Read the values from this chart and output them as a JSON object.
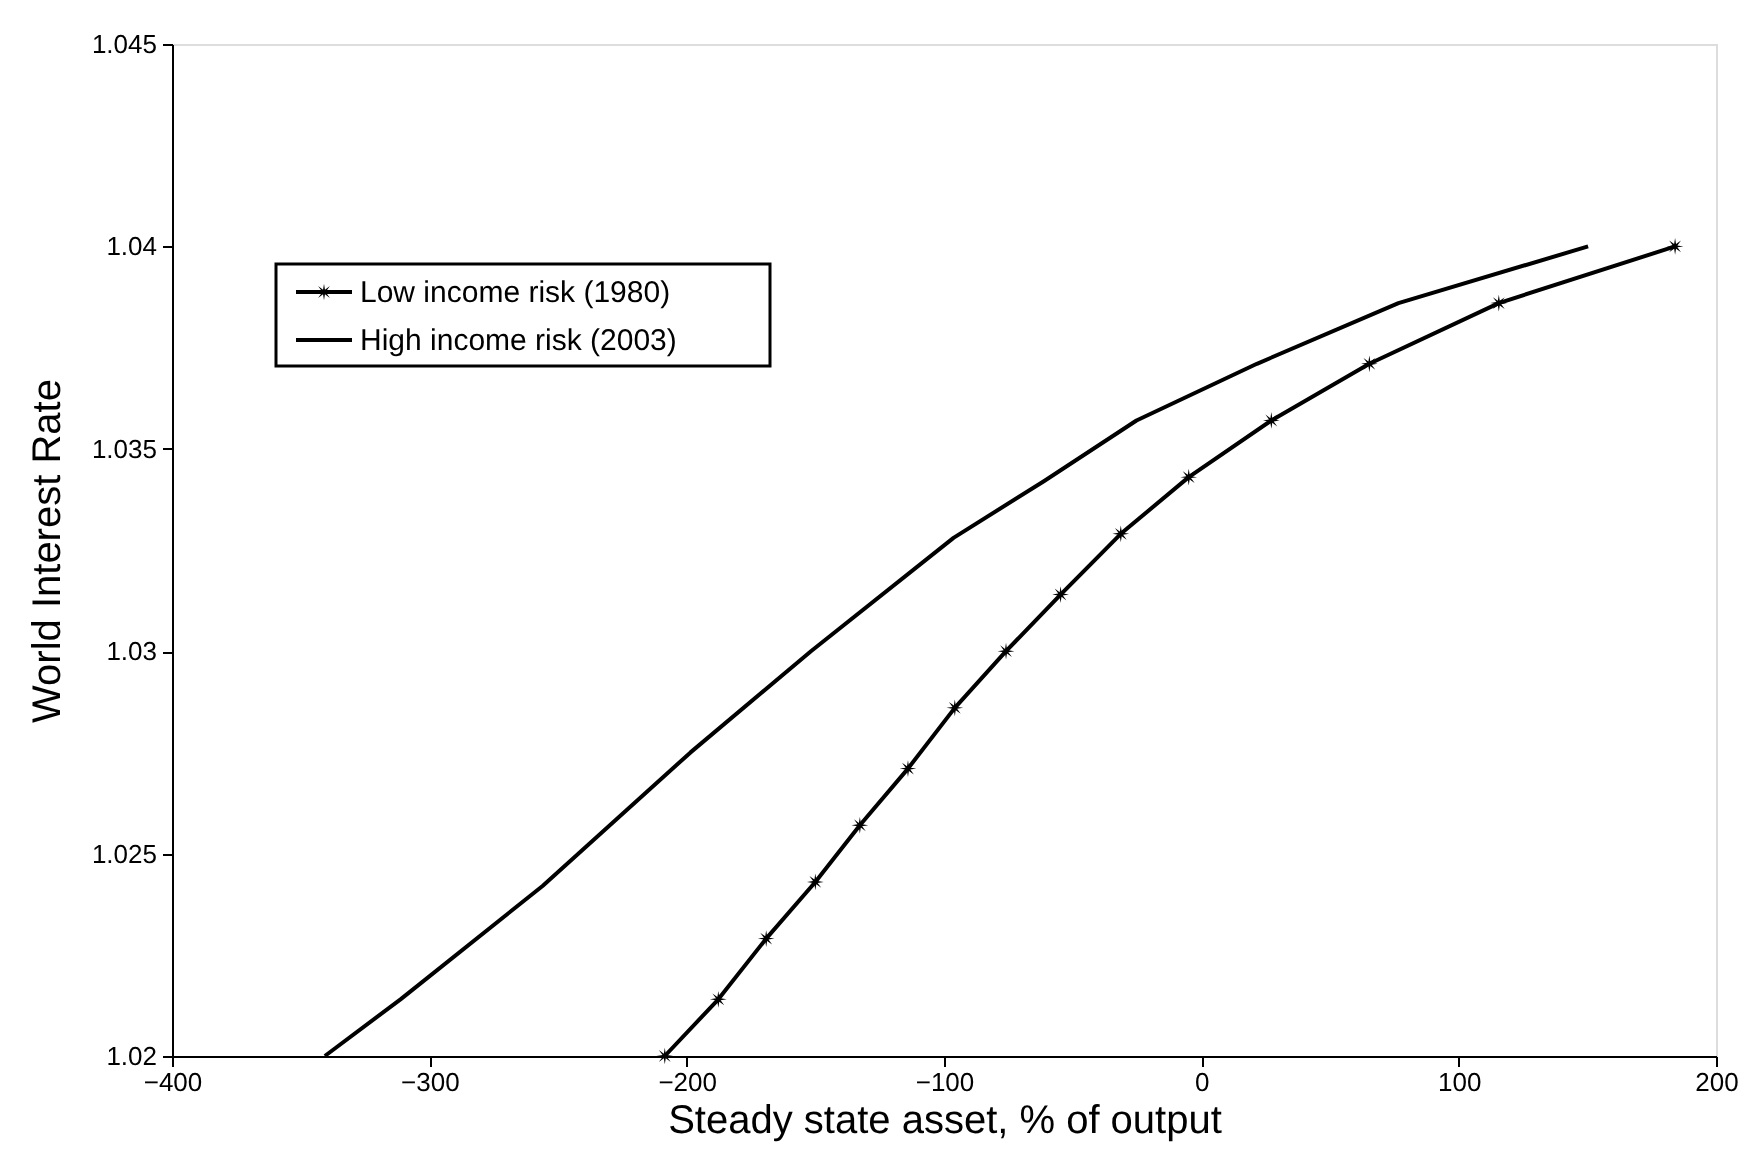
{
  "chart_data": {
    "type": "line",
    "xlabel": "Steady state asset, % of output",
    "ylabel": "World Interest Rate",
    "xlim": [
      -400,
      200
    ],
    "xticks": [
      -400,
      -300,
      -200,
      -100,
      0,
      100,
      200
    ],
    "ylim": [
      1.02,
      1.045
    ],
    "yticks": [
      1.02,
      1.025,
      1.03,
      1.035,
      1.04,
      1.045
    ],
    "grid": false,
    "legend": "top left",
    "line_style": "solid",
    "series": [
      {
        "name": "Low income risk (1980)",
        "color": "#000000",
        "marker": "star",
        "x": [
          -208.5,
          -187.7,
          -169.1,
          -150,
          -132.7,
          -114,
          -95.8,
          -75.9,
          -54.7,
          -31.3,
          -4.9,
          27.2,
          65.3,
          115.6,
          184.1
        ],
        "values": [
          1.02,
          1.0214,
          1.0229,
          1.0243,
          1.0257,
          1.0271,
          1.0286,
          1.03,
          1.0314,
          1.0329,
          1.0343,
          1.0357,
          1.0371,
          1.0386,
          1.04
        ]
      },
      {
        "name": "High income risk (2003)",
        "color": "#000000",
        "marker": "none",
        "x": [
          -340.6,
          -311.2,
          -256,
          -198.5,
          -151.7,
          -96.3,
          -61.2,
          -25.2,
          21.6,
          76.6,
          150.3
        ],
        "values": [
          1.02,
          1.0214,
          1.0242,
          1.0275,
          1.03,
          1.0328,
          1.0342,
          1.0357,
          1.0371,
          1.0386,
          1.04
        ]
      }
    ]
  }
}
